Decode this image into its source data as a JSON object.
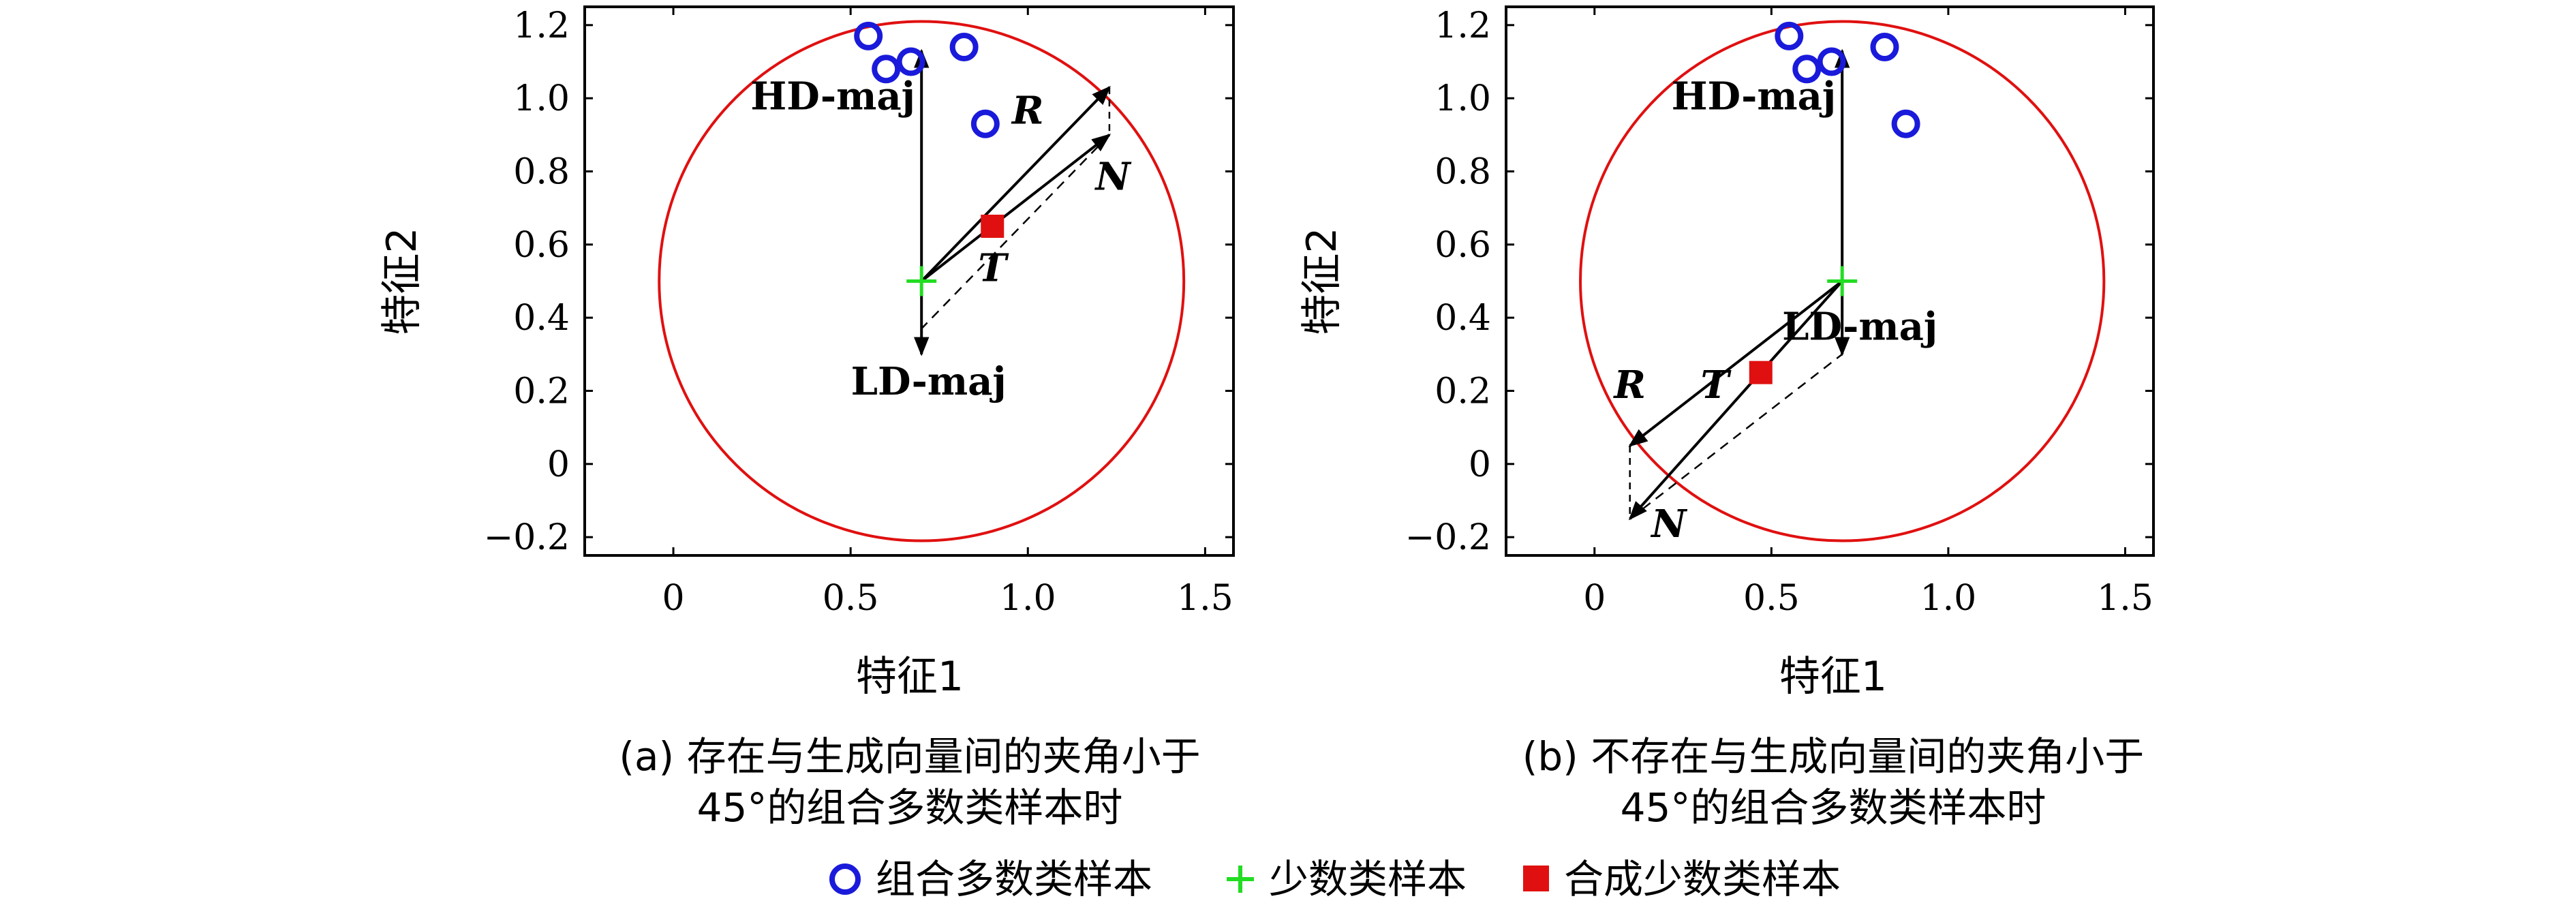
{
  "chart_data": [
    {
      "type": "scatter",
      "panel": "a",
      "caption_line1": "(a) 存在与生成向量间的夹角小于",
      "caption_line2": "45°的组合多数类样本时",
      "xlabel": "特征1",
      "ylabel": "特征2",
      "xlim": [
        -0.25,
        1.58
      ],
      "ylim": [
        -0.25,
        1.25
      ],
      "xticks": [
        "0",
        "0.5",
        "1.0",
        "1.5"
      ],
      "xtick_values": [
        0,
        0.5,
        1.0,
        1.5
      ],
      "yticks": [
        "1.2",
        "1.0",
        "0.8",
        "0.6",
        "0.4",
        "0.2",
        "0",
        "−0.2"
      ],
      "ytick_values": [
        1.2,
        1.0,
        0.8,
        0.6,
        0.4,
        0.2,
        0,
        -0.2
      ],
      "majority_samples": [
        [
          0.55,
          1.17
        ],
        [
          0.6,
          1.08
        ],
        [
          0.67,
          1.1
        ],
        [
          0.82,
          1.14
        ],
        [
          0.88,
          0.93
        ]
      ],
      "minority_sample": [
        0.7,
        0.5
      ],
      "synthetic_sample": [
        0.9,
        0.65
      ],
      "circle": {
        "center": [
          0.7,
          0.5
        ],
        "rx": 0.74,
        "ry": 0.71
      },
      "vectors": [
        {
          "label": "HD-maj",
          "from": [
            0.7,
            0.5
          ],
          "to": [
            0.7,
            1.13
          ],
          "bold": true,
          "label_pos": [
            0.45,
            0.97
          ]
        },
        {
          "label": "LD-maj",
          "from": [
            0.7,
            0.5
          ],
          "to": [
            0.7,
            0.3
          ],
          "bold": true,
          "label_pos": [
            0.72,
            0.19
          ]
        },
        {
          "label": "R",
          "from": [
            0.7,
            0.5
          ],
          "to": [
            1.23,
            1.03
          ],
          "bold": true,
          "italic": true,
          "label_pos": [
            1.0,
            0.93
          ]
        },
        {
          "label": "N",
          "from": [
            0.7,
            0.5
          ],
          "to": [
            1.23,
            0.9
          ],
          "bold": true,
          "italic": true,
          "label_pos": [
            1.24,
            0.75
          ]
        }
      ],
      "t_label": {
        "label": "T",
        "pos": [
          0.9,
          0.5
        ]
      }
    },
    {
      "type": "scatter",
      "panel": "b",
      "caption_line1": "(b) 不存在与生成向量间的夹角小于",
      "caption_line2": "45°的组合多数类样本时",
      "xlabel": "特征1",
      "ylabel": "特征2",
      "xlim": [
        -0.25,
        1.58
      ],
      "ylim": [
        -0.25,
        1.25
      ],
      "xticks": [
        "0",
        "0.5",
        "1.0",
        "1.5"
      ],
      "xtick_values": [
        0,
        0.5,
        1.0,
        1.5
      ],
      "yticks": [
        "1.2",
        "1.0",
        "0.8",
        "0.6",
        "0.4",
        "0.2",
        "0",
        "−0.2"
      ],
      "ytick_values": [
        1.2,
        1.0,
        0.8,
        0.6,
        0.4,
        0.2,
        0,
        -0.2
      ],
      "majority_samples": [
        [
          0.55,
          1.17
        ],
        [
          0.6,
          1.08
        ],
        [
          0.67,
          1.1
        ],
        [
          0.82,
          1.14
        ],
        [
          0.88,
          0.93
        ]
      ],
      "minority_sample": [
        0.7,
        0.5
      ],
      "synthetic_sample": [
        0.47,
        0.25
      ],
      "circle": {
        "center": [
          0.7,
          0.5
        ],
        "rx": 0.74,
        "ry": 0.71
      },
      "vectors": [
        {
          "label": "HD-maj",
          "from": [
            0.7,
            0.5
          ],
          "to": [
            0.7,
            1.13
          ],
          "bold": true,
          "label_pos": [
            0.45,
            0.97
          ]
        },
        {
          "label": "LD-maj",
          "from": [
            0.7,
            0.5
          ],
          "to": [
            0.7,
            0.3
          ],
          "bold": true,
          "label_pos": [
            0.75,
            0.34
          ]
        },
        {
          "label": "R",
          "from": [
            0.7,
            0.5
          ],
          "to": [
            0.1,
            0.05
          ],
          "bold": true,
          "italic": true,
          "label_pos": [
            0.1,
            0.18
          ]
        },
        {
          "label": "N",
          "from": [
            0.7,
            0.5
          ],
          "to": [
            0.1,
            -0.15
          ],
          "bold": true,
          "italic": true,
          "label_pos": [
            0.21,
            -0.2
          ]
        }
      ],
      "t_label": {
        "label": "T",
        "pos": [
          0.34,
          0.18
        ]
      }
    }
  ],
  "legend": [
    {
      "label": "组合多数类样本",
      "marker": "circle",
      "color": "#1a1adb"
    },
    {
      "label": "少数类样本",
      "marker": "plus",
      "color": "#22dd22"
    },
    {
      "label": "合成少数类样本",
      "marker": "square",
      "color": "#e01010"
    }
  ],
  "colors": {
    "majority": "#1a1adb",
    "minority": "#22dd22",
    "synthetic": "#e01010",
    "circle": "#e01010"
  }
}
